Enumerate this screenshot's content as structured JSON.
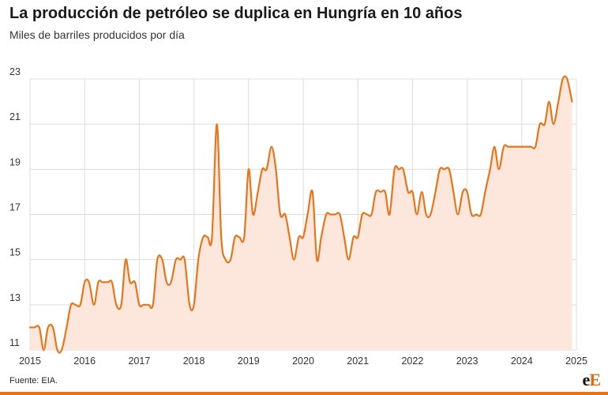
{
  "header": {
    "title": "La producción de petróleo se duplica en Hungría en 10 años",
    "subtitle": "Miles de barriles producidos por día"
  },
  "footer": {
    "source": "Fuente: EIA.",
    "logo_lower": "e",
    "logo_upper": "E"
  },
  "colors": {
    "line": "#e8751a",
    "area": "#fde6dc",
    "grid": "#dcdcdc",
    "bar": "#e8751a"
  },
  "chart_data": {
    "type": "area",
    "xlim": [
      2015,
      2025
    ],
    "ylim": [
      11,
      23
    ],
    "yticks": [
      11,
      13,
      15,
      17,
      19,
      21,
      23
    ],
    "xticks": [
      "2015",
      "2016",
      "2017",
      "2018",
      "2019",
      "2020",
      "2021",
      "2022",
      "2023",
      "2024",
      "2025"
    ],
    "grid": true,
    "legend": "none",
    "x": [
      2015.0,
      2015.08,
      2015.17,
      2015.25,
      2015.33,
      2015.42,
      2015.5,
      2015.58,
      2015.67,
      2015.75,
      2015.83,
      2015.92,
      2016.0,
      2016.08,
      2016.17,
      2016.25,
      2016.33,
      2016.42,
      2016.5,
      2016.58,
      2016.67,
      2016.75,
      2016.83,
      2016.92,
      2017.0,
      2017.08,
      2017.17,
      2017.25,
      2017.33,
      2017.42,
      2017.5,
      2017.58,
      2017.67,
      2017.75,
      2017.83,
      2017.92,
      2018.0,
      2018.08,
      2018.17,
      2018.25,
      2018.33,
      2018.42,
      2018.5,
      2018.58,
      2018.67,
      2018.75,
      2018.83,
      2018.92,
      2019.0,
      2019.08,
      2019.17,
      2019.25,
      2019.33,
      2019.42,
      2019.5,
      2019.58,
      2019.67,
      2019.75,
      2019.83,
      2019.92,
      2020.0,
      2020.08,
      2020.17,
      2020.25,
      2020.33,
      2020.42,
      2020.5,
      2020.58,
      2020.67,
      2020.75,
      2020.83,
      2020.92,
      2021.0,
      2021.08,
      2021.17,
      2021.25,
      2021.33,
      2021.42,
      2021.5,
      2021.58,
      2021.67,
      2021.75,
      2021.83,
      2021.92,
      2022.0,
      2022.08,
      2022.17,
      2022.25,
      2022.33,
      2022.42,
      2022.5,
      2022.58,
      2022.67,
      2022.75,
      2022.83,
      2022.92,
      2023.0,
      2023.08,
      2023.17,
      2023.25,
      2023.33,
      2023.42,
      2023.5,
      2023.58,
      2023.67,
      2023.75,
      2023.83,
      2023.92,
      2024.0,
      2024.08,
      2024.17,
      2024.25,
      2024.33,
      2024.42,
      2024.5,
      2024.58,
      2024.67,
      2024.75,
      2024.83,
      2024.92
    ],
    "y": [
      12,
      12,
      12,
      11,
      12,
      12,
      11,
      11,
      12,
      13,
      13,
      13,
      14,
      14,
      13,
      14,
      14,
      14,
      14,
      13,
      13,
      15,
      14,
      14,
      13,
      13,
      13,
      13,
      15,
      15,
      14,
      14,
      15,
      15,
      15,
      13,
      13,
      15,
      16,
      16,
      16,
      21,
      16,
      15,
      15,
      16,
      16,
      16,
      19,
      17,
      18,
      19,
      19,
      20,
      19,
      17,
      17,
      16,
      15,
      16,
      16,
      17,
      18,
      15,
      16,
      17,
      17,
      17,
      17,
      16,
      15,
      16,
      16,
      17,
      17,
      17,
      18,
      18,
      18,
      17,
      19,
      19,
      19,
      18,
      18,
      17,
      18,
      17,
      17,
      18,
      19,
      19,
      19,
      18,
      17,
      18,
      18,
      17,
      17,
      17,
      18,
      19,
      20,
      19,
      20,
      20,
      20,
      20,
      20,
      20,
      20,
      20,
      21,
      21,
      22,
      21,
      22,
      23,
      23,
      22
    ]
  }
}
